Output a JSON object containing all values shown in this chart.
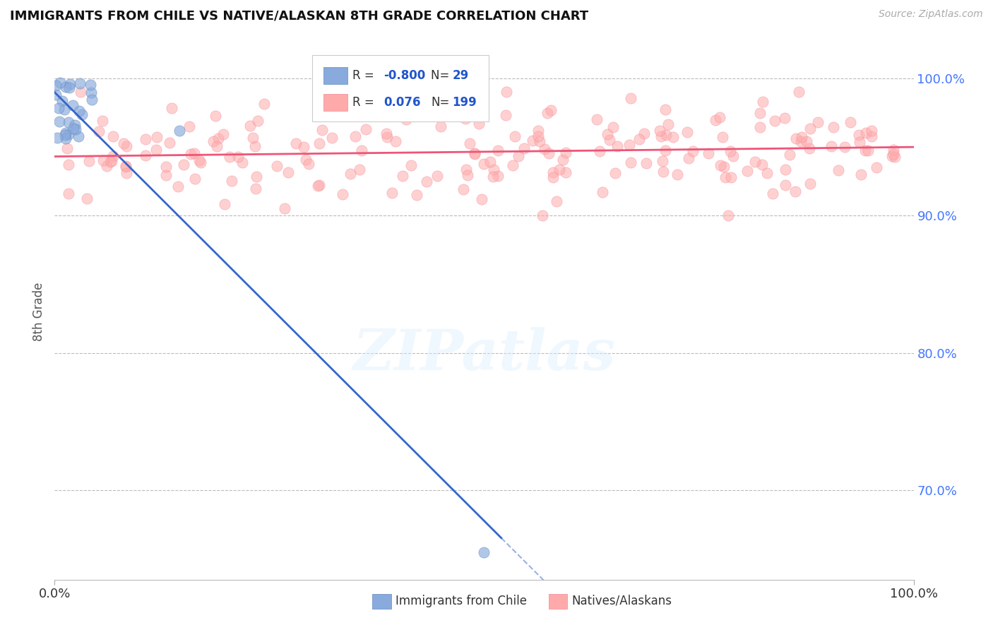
{
  "title": "IMMIGRANTS FROM CHILE VS NATIVE/ALASKAN 8TH GRADE CORRELATION CHART",
  "source_text": "Source: ZipAtlas.com",
  "ylabel": "8th Grade",
  "legend_r_blue": "-0.800",
  "legend_n_blue": "29",
  "legend_r_pink": "0.076",
  "legend_n_pink": "199",
  "blue_color": "#88AADD",
  "blue_color_edge": "#6688BB",
  "pink_color": "#FFAAAA",
  "pink_color_edge": "#EE8899",
  "blue_line_color": "#3366CC",
  "pink_line_color": "#EE5577",
  "watermark_text": "ZIPatlas",
  "xlim": [
    0.0,
    1.0
  ],
  "ylim": [
    0.635,
    1.025
  ],
  "y_ticks": [
    0.7,
    0.8,
    0.9,
    1.0
  ],
  "y_tick_labels": [
    "70.0%",
    "80.0%",
    "90.0%",
    "100.0%"
  ],
  "x_tick_labels": [
    "0.0%",
    "100.0%"
  ],
  "grid_color": "#BBBBBB",
  "background_color": "#FFFFFF",
  "legend_bottom_blue": "Immigrants from Chile",
  "legend_bottom_pink": "Natives/Alaskans"
}
